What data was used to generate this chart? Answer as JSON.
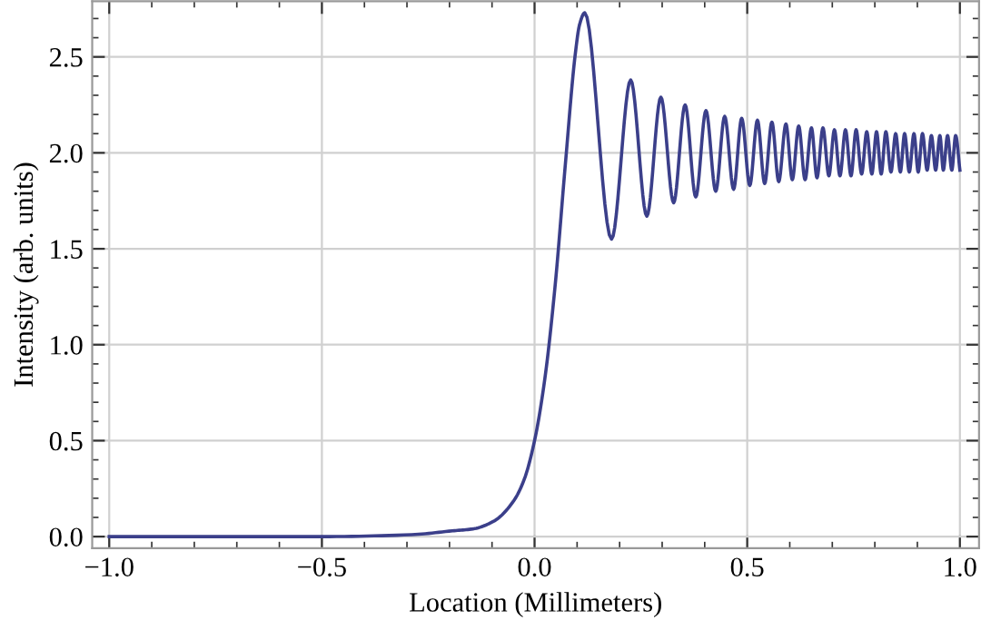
{
  "chart_data": {
    "type": "line",
    "xlabel": "Location (Millimeters)",
    "ylabel": "Intensity (arb. units)",
    "xlim": [
      -1.04,
      1.045
    ],
    "ylim": [
      -0.06,
      2.79
    ],
    "xticks": [
      {
        "value": -1.0,
        "label": "−1.0"
      },
      {
        "value": -0.5,
        "label": "−0.5"
      },
      {
        "value": 0.0,
        "label": "0.0"
      },
      {
        "value": 0.5,
        "label": "0.5"
      },
      {
        "value": 1.0,
        "label": "1.0"
      }
    ],
    "yticks": [
      {
        "value": 0.0,
        "label": "0.0"
      },
      {
        "value": 0.5,
        "label": "0.5"
      },
      {
        "value": 1.0,
        "label": "1.0"
      },
      {
        "value": 1.5,
        "label": "1.5"
      },
      {
        "value": 2.0,
        "label": "2.0"
      },
      {
        "value": 2.5,
        "label": "2.5"
      }
    ],
    "grid": true,
    "marker": "none",
    "line_style": "solid",
    "series": [
      {
        "color": "#3b3f8a",
        "x": [
          -1.0,
          -0.5,
          -0.289,
          -0.193,
          -0.145,
          -0.096,
          -0.048,
          -0.024,
          0.0,
          0.024,
          0.048,
          0.072,
          0.096,
          0.106,
          0.118,
          0.181,
          0.226,
          0.264,
          0.297,
          0.327,
          0.354,
          0.379,
          0.403,
          0.426,
          0.447,
          0.468,
          0.487,
          0.506,
          0.524,
          0.541,
          0.558,
          0.574,
          0.591,
          0.606,
          0.621,
          0.636,
          0.651,
          0.664,
          0.678,
          0.692,
          0.705,
          0.718,
          0.731,
          0.744,
          0.756,
          0.769,
          0.781,
          0.793,
          0.804,
          0.815,
          0.826,
          0.838,
          0.849,
          0.86,
          0.87,
          0.881,
          0.892,
          0.902,
          0.912,
          0.923,
          0.933,
          0.943,
          0.953,
          0.961,
          0.971,
          0.981,
          0.99,
          1.0
        ],
        "values": [
          0.0,
          0.0,
          0.01,
          0.03,
          0.04,
          0.08,
          0.19,
          0.3,
          0.5,
          0.82,
          1.3,
          1.93,
          2.52,
          2.67,
          2.73,
          1.55,
          2.38,
          1.67,
          2.29,
          1.74,
          2.25,
          1.77,
          2.22,
          1.8,
          2.19,
          1.81,
          2.18,
          1.83,
          2.17,
          1.84,
          2.16,
          1.85,
          2.15,
          1.86,
          2.14,
          1.86,
          2.13,
          1.87,
          2.13,
          1.88,
          2.12,
          1.88,
          2.12,
          1.88,
          2.12,
          1.89,
          2.11,
          1.89,
          2.11,
          1.89,
          2.11,
          1.9,
          2.1,
          1.9,
          2.1,
          1.9,
          2.1,
          1.9,
          2.1,
          1.91,
          2.09,
          1.91,
          2.09,
          1.91,
          2.09,
          1.91,
          2.09,
          1.91
        ]
      }
    ]
  }
}
